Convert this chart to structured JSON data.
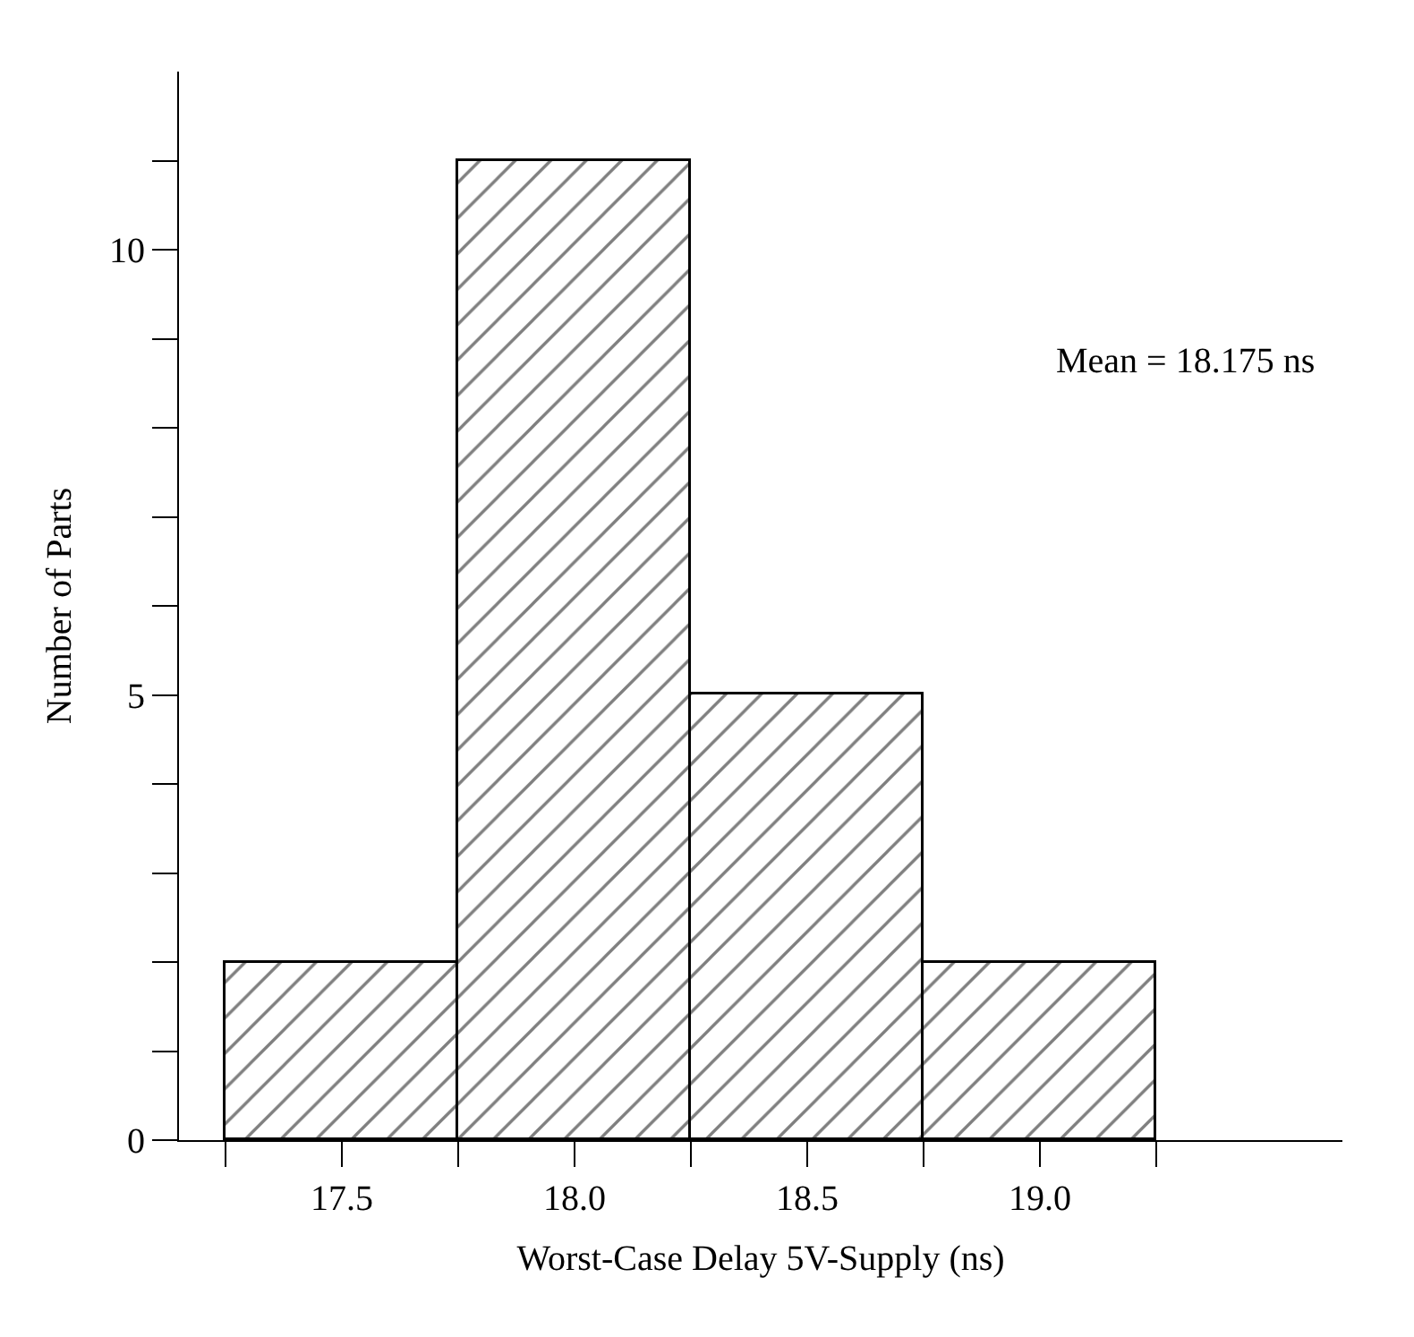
{
  "chart_data": {
    "type": "histogram",
    "xlabel": "Worst-Case Delay 5V-Supply (ns)",
    "ylabel": "Number of Parts",
    "bins": [
      17.25,
      17.75,
      18.25,
      18.75,
      19.25
    ],
    "values": [
      2,
      11,
      5,
      2
    ],
    "color": "#000000",
    "xlim": [
      17.15,
      19.65
    ],
    "ylim": [
      0,
      12
    ],
    "xticks": [
      {
        "value": 17.25,
        "label": null
      },
      {
        "value": 17.75,
        "label": null
      },
      {
        "value": 18.25,
        "label": null
      },
      {
        "value": 18.75,
        "label": null
      },
      {
        "value": 19.25,
        "label": null
      },
      {
        "value": 17.5,
        "label": "17.5"
      },
      {
        "value": 18.0,
        "label": "18.0"
      },
      {
        "value": 18.5,
        "label": "18.5"
      },
      {
        "value": 19.0,
        "label": "19.0"
      }
    ],
    "yticks": [
      0,
      {
        "value": 1,
        "label": null
      },
      {
        "value": 2,
        "label": null
      },
      {
        "value": 3,
        "label": null
      },
      {
        "value": 4,
        "label": null
      },
      5,
      {
        "value": 6,
        "label": null
      },
      {
        "value": 7,
        "label": null
      },
      {
        "value": 8,
        "label": null
      },
      {
        "value": 9,
        "label": null
      },
      10,
      {
        "value": 11,
        "label": null
      }
    ],
    "annotations": [
      "Mean = 18.175 ns"
    ]
  }
}
